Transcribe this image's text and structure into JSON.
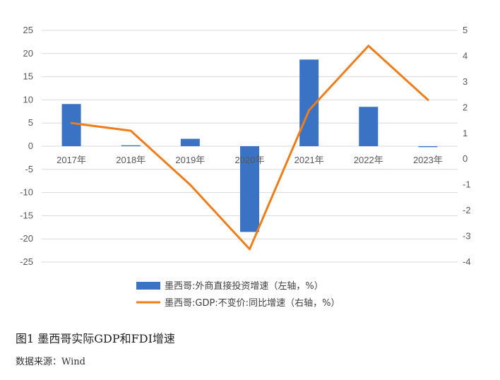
{
  "caption": "图1  墨西哥实际GDP和FDI增速",
  "source": "数据来源：Wind",
  "chart_data": {
    "type": "bar+line",
    "categories": [
      "2017年",
      "2018年",
      "2019年",
      "2020年",
      "2021年",
      "2022年",
      "2023年"
    ],
    "series": [
      {
        "name": "墨西哥:外商直接投资增速（左轴，%）",
        "type": "bar",
        "axis": "left",
        "color": "#3a72c4",
        "values": [
          9.1,
          0.2,
          1.6,
          -18.5,
          18.7,
          8.5,
          -0.2
        ]
      },
      {
        "name": "墨西哥:GDP:不变价:同比增速（右轴，%）",
        "type": "line",
        "axis": "right",
        "color": "#ef7d1a",
        "values": [
          1.4,
          1.1,
          -1.0,
          -3.5,
          1.9,
          4.4,
          2.3
        ]
      }
    ],
    "left_axis": {
      "min": -25,
      "max": 25,
      "step": 5,
      "ticks": [
        "25",
        "20",
        "15",
        "10",
        "5",
        "0",
        "-5",
        "-10",
        "-15",
        "-20",
        "-25"
      ]
    },
    "right_axis": {
      "min": -4,
      "max": 5,
      "step": 1,
      "ticks": [
        "5",
        "4",
        "3",
        "2",
        "1",
        "0",
        "-1",
        "-2",
        "-3",
        "-4"
      ]
    },
    "grid": true,
    "legend_position": "bottom"
  }
}
